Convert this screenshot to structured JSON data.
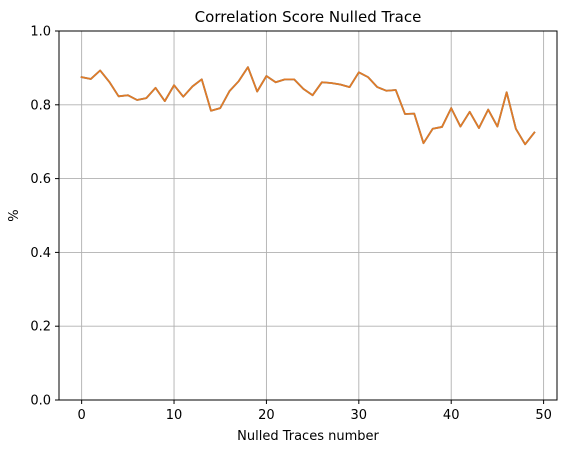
{
  "chart_data": {
    "type": "line",
    "title": "Correlation Score Nulled Trace",
    "xlabel": "Nulled Traces number",
    "ylabel": "%",
    "xlim": [
      -2.45,
      51.45
    ],
    "ylim": [
      0.0,
      1.0
    ],
    "xticks": [
      0,
      10,
      20,
      30,
      40,
      50
    ],
    "xtick_labels": [
      "0",
      "10",
      "20",
      "30",
      "40",
      "50"
    ],
    "yticks": [
      0.0,
      0.2,
      0.4,
      0.6,
      0.8,
      1.0
    ],
    "ytick_labels": [
      "0.0",
      "0.2",
      "0.4",
      "0.6",
      "0.8",
      "1.0"
    ],
    "grid": true,
    "legend": "none",
    "x": [
      0,
      1,
      2,
      3,
      4,
      5,
      6,
      7,
      8,
      9,
      10,
      11,
      12,
      13,
      14,
      15,
      16,
      17,
      18,
      19,
      20,
      21,
      22,
      23,
      24,
      25,
      26,
      27,
      28,
      29,
      30,
      31,
      32,
      33,
      34,
      35,
      36,
      37,
      38,
      39,
      40,
      41,
      42,
      43,
      44,
      45,
      46,
      47,
      48,
      49
    ],
    "series": [
      {
        "color": "#1f77b4",
        "values": [
          0.875,
          0.87,
          0.893,
          0.862,
          0.823,
          0.826,
          0.813,
          0.818,
          0.846,
          0.81,
          0.853,
          0.822,
          0.85,
          0.869,
          0.784,
          0.791,
          0.837,
          0.864,
          0.902,
          0.836,
          0.878,
          0.861,
          0.869,
          0.869,
          0.843,
          0.826,
          0.861,
          0.859,
          0.855,
          0.848,
          0.888,
          0.875,
          0.848,
          0.838,
          0.84,
          0.775,
          0.776,
          0.696,
          0.735,
          0.74,
          0.791,
          0.741,
          0.781,
          0.737,
          0.787,
          0.741,
          0.834,
          0.735,
          0.693,
          0.725
        ]
      },
      {
        "color": "#e07b28",
        "values": [
          0.875,
          0.87,
          0.893,
          0.862,
          0.823,
          0.826,
          0.813,
          0.818,
          0.846,
          0.81,
          0.853,
          0.822,
          0.85,
          0.869,
          0.784,
          0.791,
          0.837,
          0.864,
          0.902,
          0.836,
          0.878,
          0.861,
          0.869,
          0.869,
          0.843,
          0.826,
          0.861,
          0.859,
          0.855,
          0.848,
          0.888,
          0.875,
          0.848,
          0.838,
          0.84,
          0.775,
          0.776,
          0.696,
          0.735,
          0.74,
          0.791,
          0.741,
          0.781,
          0.737,
          0.787,
          0.741,
          0.834,
          0.735,
          0.693,
          0.725
        ]
      }
    ]
  }
}
